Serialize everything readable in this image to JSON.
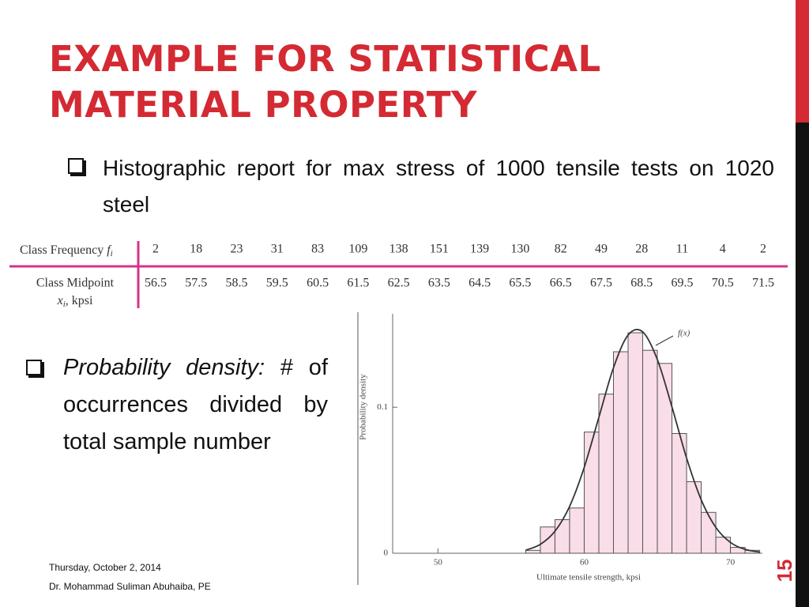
{
  "title": [
    "EXAMPLE FOR STATISTICAL",
    "MATERIAL PROPERTY"
  ],
  "bullets": [
    {
      "text": "Histographic report for max stress of 1000 tensile tests on 1020 steel"
    },
    {
      "emphasis": "Probability density:",
      "text": "# of occurrences divided by total sample number"
    }
  ],
  "table": {
    "rows": [
      {
        "label": "Class Frequency",
        "var": "f",
        "sub": "i",
        "values": [
          2,
          18,
          23,
          31,
          83,
          109,
          138,
          151,
          139,
          130,
          82,
          49,
          28,
          11,
          4,
          2
        ]
      },
      {
        "label": "Class Midpoint",
        "var": "x",
        "sub": "i",
        "unit": ", kpsi",
        "values": [
          56.5,
          57.5,
          58.5,
          59.5,
          60.5,
          61.5,
          62.5,
          63.5,
          64.5,
          65.5,
          66.5,
          67.5,
          68.5,
          69.5,
          70.5,
          71.5
        ]
      }
    ]
  },
  "footer": {
    "date": "Thursday, October 2, 2014",
    "author": "Dr. Mohammad Suliman Abuhaiba, PE"
  },
  "slide_number": "15",
  "chart_data": {
    "type": "histogram",
    "x_label": "Ultimate tensile strength, kpsi",
    "y_label": "Probability density",
    "bins": [
      56,
      57,
      58,
      59,
      60,
      61,
      62,
      63,
      64,
      65,
      66,
      67,
      68,
      69,
      70,
      71,
      72
    ],
    "values": [
      0.002,
      0.018,
      0.023,
      0.031,
      0.083,
      0.109,
      0.138,
      0.151,
      0.139,
      0.13,
      0.082,
      0.049,
      0.028,
      0.011,
      0.004,
      0.002
    ],
    "color": "#f9dde8",
    "curve": {
      "name": "f(x)",
      "color": "#333333",
      "x": [
        56,
        57,
        58,
        59,
        60,
        61,
        62,
        63,
        64,
        65,
        66,
        67,
        68,
        69,
        70,
        71,
        72
      ],
      "values": [
        0.0021,
        0.0061,
        0.0151,
        0.0321,
        0.0588,
        0.093,
        0.127,
        0.1494,
        0.1516,
        0.1327,
        0.1002,
        0.0652,
        0.0366,
        0.0177,
        0.0074,
        0.0027,
        0.0008
      ]
    },
    "xlim": [
      46.9,
      72.4
    ],
    "ylim": [
      0,
      0.164
    ],
    "xticks": [
      50,
      60,
      70
    ],
    "yticks": [
      0,
      0.1
    ]
  }
}
